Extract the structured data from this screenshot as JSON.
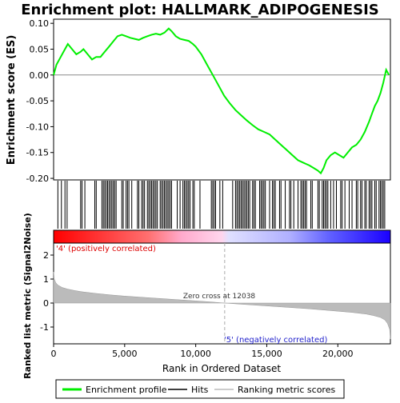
{
  "chart_data": {
    "type": "line",
    "title": "Enrichment plot: HALLMARK_ADIPOGENESIS",
    "top_panel": {
      "ylabel": "Enrichment score (ES)",
      "ylim": [
        -0.2,
        0.1
      ],
      "yticks": [
        {
          "value": 0.1,
          "label": "0.10"
        },
        {
          "value": 0.05,
          "label": "0.05"
        },
        {
          "value": 0.0,
          "label": "0.00"
        },
        {
          "value": -0.05,
          "label": "-0.05"
        },
        {
          "value": -0.1,
          "label": "-0.10"
        },
        {
          "value": -0.15,
          "label": "-0.15"
        },
        {
          "value": -0.2,
          "label": "-0.20"
        }
      ],
      "series": [
        {
          "name": "Enrichment profile",
          "color": "#00ee00",
          "x": [
            0,
            200,
            500,
            800,
            1000,
            1300,
            1600,
            1900,
            2100,
            2400,
            2700,
            3000,
            3300,
            3600,
            3900,
            4200,
            4500,
            4800,
            5100,
            5400,
            5700,
            6000,
            6300,
            6600,
            6900,
            7200,
            7500,
            7800,
            8100,
            8300,
            8600,
            8900,
            9200,
            9500,
            9800,
            10000,
            10400,
            10800,
            11200,
            11600,
            12000,
            12400,
            12800,
            13200,
            13600,
            14000,
            14400,
            14800,
            15200,
            15600,
            16000,
            16400,
            16800,
            17200,
            17600,
            18000,
            18300,
            18600,
            18800,
            19000,
            19200,
            19500,
            19800,
            20100,
            20400,
            20700,
            21000,
            21300,
            21600,
            21900,
            22200,
            22400,
            22600,
            22800,
            23000,
            23200,
            23400,
            23600
          ],
          "y": [
            0.0,
            0.02,
            0.035,
            0.05,
            0.06,
            0.05,
            0.04,
            0.045,
            0.05,
            0.04,
            0.03,
            0.035,
            0.035,
            0.045,
            0.055,
            0.065,
            0.075,
            0.078,
            0.075,
            0.072,
            0.07,
            0.068,
            0.072,
            0.075,
            0.078,
            0.08,
            0.078,
            0.082,
            0.09,
            0.085,
            0.075,
            0.07,
            0.068,
            0.066,
            0.06,
            0.055,
            0.04,
            0.02,
            0.0,
            -0.02,
            -0.04,
            -0.055,
            -0.068,
            -0.078,
            -0.088,
            -0.097,
            -0.105,
            -0.11,
            -0.115,
            -0.125,
            -0.135,
            -0.145,
            -0.155,
            -0.165,
            -0.17,
            -0.175,
            -0.18,
            -0.185,
            -0.19,
            -0.18,
            -0.165,
            -0.155,
            -0.15,
            -0.155,
            -0.16,
            -0.15,
            -0.14,
            -0.135,
            -0.125,
            -0.11,
            -0.09,
            -0.075,
            -0.06,
            -0.05,
            -0.035,
            -0.015,
            0.01,
            0.0
          ]
        }
      ]
    },
    "bottom_panel": {
      "ylabel": "Ranked list metric (Signal2Noise)",
      "xlabel": "Rank in Ordered Dataset",
      "ylim": [
        -1.7,
        2.5
      ],
      "yticks": [
        {
          "value": 2,
          "label": "2"
        },
        {
          "value": 1,
          "label": "1"
        },
        {
          "value": 0,
          "label": "0"
        },
        {
          "value": -1,
          "label": "-1"
        }
      ],
      "series": [
        {
          "name": "Ranking metric scores",
          "color": "#bbbbbb",
          "x": [
            0,
            50,
            150,
            300,
            600,
            1000,
            1500,
            2000,
            3000,
            4000,
            5000,
            6000,
            7000,
            8000,
            9000,
            10000,
            11000,
            12038,
            13000,
            14000,
            15000,
            16000,
            17000,
            18000,
            19000,
            20000,
            21000,
            22000,
            22500,
            23000,
            23300,
            23500,
            23650,
            23700
          ],
          "y": [
            1.3,
            1.0,
            0.85,
            0.75,
            0.65,
            0.58,
            0.52,
            0.47,
            0.4,
            0.34,
            0.29,
            0.25,
            0.21,
            0.17,
            0.13,
            0.09,
            0.05,
            0.0,
            -0.04,
            -0.08,
            -0.12,
            -0.16,
            -0.2,
            -0.24,
            -0.29,
            -0.34,
            -0.39,
            -0.46,
            -0.52,
            -0.6,
            -0.7,
            -0.85,
            -1.1,
            -1.5
          ]
        }
      ],
      "zero_cross_label": "Zero cross at 12038",
      "zero_cross_x": 12038,
      "positive_label": "'4' (positively correlated)",
      "negative_label": "'5' (negatively correlated)"
    },
    "xlim": [
      0,
      23700
    ],
    "xticks": [
      {
        "value": 0,
        "label": "0"
      },
      {
        "value": 5000,
        "label": "5,000"
      },
      {
        "value": 10000,
        "label": "10,000"
      },
      {
        "value": 15000,
        "label": "15,000"
      },
      {
        "value": 20000,
        "label": "20,000"
      }
    ],
    "hits": [
      300,
      550,
      800,
      950,
      1900,
      2000,
      2200,
      2900,
      3000,
      3400,
      3500,
      3600,
      3700,
      3800,
      3900,
      4000,
      4100,
      4200,
      4300,
      4400,
      4800,
      4900,
      5100,
      5200,
      5300,
      5500,
      5900,
      6000,
      6200,
      6300,
      6400,
      6600,
      6700,
      6800,
      6900,
      7000,
      7100,
      7200,
      7300,
      7500,
      7600,
      7700,
      7800,
      7900,
      8000,
      8100,
      8200,
      8300,
      8700,
      8900,
      9100,
      9200,
      9300,
      9400,
      9500,
      9600,
      9800,
      9900,
      10300,
      11100,
      11200,
      11300,
      11400,
      11700,
      11900,
      12600,
      12800,
      12900,
      13000,
      13100,
      13200,
      13300,
      13400,
      13500,
      13600,
      13700,
      13800,
      14000,
      14100,
      14200,
      14500,
      14600,
      14700,
      14800,
      14900,
      15200,
      15400,
      15500,
      15600,
      15900,
      16000,
      16300,
      16600,
      16700,
      16900,
      17200,
      17400,
      17500,
      17600,
      17700,
      17800,
      18100,
      18200,
      18600,
      18700,
      18900,
      19000,
      19100,
      19200,
      19300,
      19500,
      19700,
      19900,
      20200,
      20300,
      20500,
      20800,
      21000,
      21300,
      21400,
      21600,
      21700,
      21900,
      22000,
      22200,
      22300,
      22400,
      22600,
      22700,
      22900,
      23000,
      23100,
      23200,
      23300
    ],
    "legend": {
      "placement": "bottom",
      "items": [
        {
          "label": "Enrichment profile",
          "color": "#00ee00",
          "kind": "line"
        },
        {
          "label": "Hits",
          "color": "#000000",
          "kind": "line"
        },
        {
          "label": "Ranking metric scores",
          "color": "#bbbbbb",
          "kind": "line"
        }
      ]
    }
  }
}
